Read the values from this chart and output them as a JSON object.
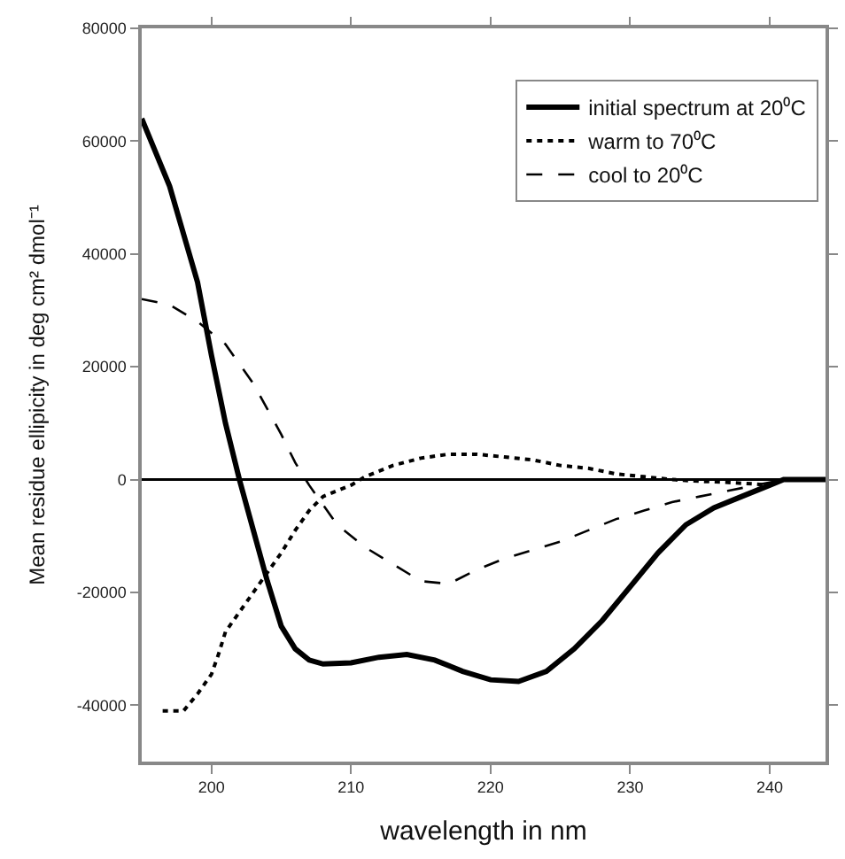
{
  "chart_data": {
    "type": "line",
    "xlabel": "wavelength in nm",
    "ylabel": "Mean residue ellipicity in deg cm² dmol⁻¹",
    "xlim": [
      195,
      244
    ],
    "ylim": [
      -50000,
      80000
    ],
    "xticks": [
      200,
      210,
      220,
      230,
      240
    ],
    "yticks": [
      -40000,
      -20000,
      0,
      20000,
      40000,
      60000,
      80000
    ],
    "grid": false,
    "legend": "top right",
    "marker": "none",
    "ref_lines": [
      {
        "axis": "y",
        "value": 0,
        "color": "#000000",
        "line_style": "solid"
      }
    ],
    "series": [
      {
        "name": "initial spectrum at 20⁰C",
        "color": "#000000",
        "line_style": "solid",
        "x": [
          195,
          197,
          199,
          200,
          201,
          202,
          203,
          204,
          205,
          206,
          207,
          208,
          210,
          212,
          214,
          216,
          218,
          220,
          222,
          224,
          226,
          228,
          230,
          232,
          234,
          236,
          238,
          240,
          241,
          244
        ],
        "values": [
          64000,
          52000,
          35000,
          22000,
          10000,
          0,
          -9000,
          -18000,
          -26000,
          -30000,
          -32000,
          -32700,
          -32500,
          -31500,
          -31000,
          -32000,
          -34000,
          -35500,
          -35800,
          -34000,
          -30000,
          -25000,
          -19000,
          -13000,
          -8000,
          -5000,
          -3000,
          -1000,
          0,
          0
        ]
      },
      {
        "name": "warm to 70⁰C",
        "color": "#000000",
        "line_style": "dotted",
        "x": [
          196.5,
          198,
          199,
          200,
          200.5,
          201,
          202,
          203,
          204,
          205,
          206,
          207,
          208,
          210,
          211,
          213,
          215,
          217,
          219,
          221,
          223,
          225,
          227,
          229,
          231,
          233,
          235,
          237,
          239,
          240
        ],
        "values": [
          -41000,
          -41000,
          -38000,
          -34500,
          -31000,
          -27000,
          -23500,
          -20000,
          -16500,
          -13000,
          -9000,
          -5500,
          -3000,
          -1000,
          500,
          2500,
          3800,
          4500,
          4500,
          4000,
          3500,
          2500,
          2000,
          1000,
          500,
          0,
          -300,
          -500,
          -800,
          -1000
        ]
      },
      {
        "name": "cool to 20⁰C",
        "color": "#000000",
        "line_style": "dashed",
        "x": [
          195,
          197,
          199,
          201,
          203,
          205,
          206,
          207,
          209,
          211,
          213,
          215,
          217,
          219,
          221,
          223,
          225,
          227,
          229,
          231,
          233,
          235,
          237,
          239,
          241,
          244
        ],
        "values": [
          32000,
          31000,
          28000,
          24000,
          17000,
          8000,
          3000,
          -1000,
          -8000,
          -12000,
          -15000,
          -18000,
          -18500,
          -16000,
          -14000,
          -12500,
          -11000,
          -9000,
          -7000,
          -5500,
          -4000,
          -3000,
          -2000,
          -1000,
          0,
          0
        ]
      }
    ]
  }
}
